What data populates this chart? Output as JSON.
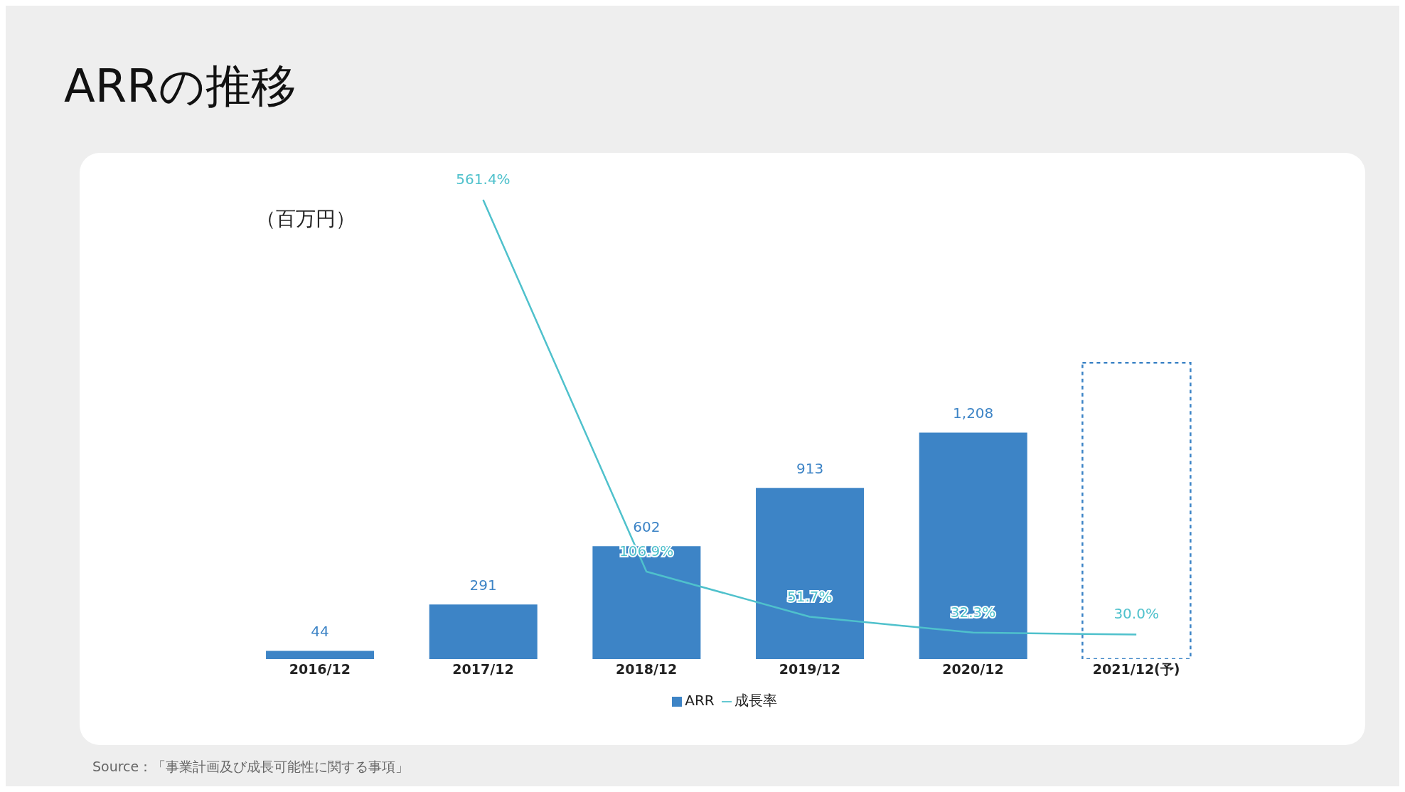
{
  "chart_data": {
    "type": "bar",
    "title": "ARRの推移",
    "annotations": [
      "（百万円）",
      "Source：「事業計画及び成長可能性に関する事項」"
    ],
    "categories": [
      "2016/12",
      "2017/12",
      "2018/12",
      "2019/12",
      "2020/12",
      "2021/12(予)"
    ],
    "series": [
      {
        "name": "ARR",
        "color": "#3d84c6",
        "values": [
          44,
          291,
          602,
          913,
          1208,
          null
        ],
        "value_labels": [
          "44",
          "291",
          "602",
          "913",
          "1,208",
          null
        ]
      },
      {
        "color": "#3d84c6",
        "line_style": "dotted",
        "values": [
          null,
          null,
          null,
          null,
          null,
          1580
        ]
      },
      {
        "name": "成長率",
        "type": "line",
        "axis": "y2",
        "color": "#4fc1cc",
        "values": [
          null,
          561.4,
          106.9,
          51.7,
          32.3,
          30.0
        ],
        "value_labels": [
          null,
          "561.4%",
          "106.9%",
          "51.7%",
          "32.3%",
          "30.0%"
        ]
      }
    ],
    "tick_labels": "x",
    "grid": false,
    "legend": "bottom",
    "marker": "none",
    "line_style": "solid"
  }
}
